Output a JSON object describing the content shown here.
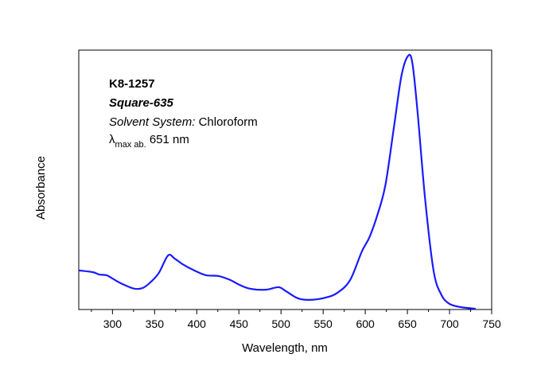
{
  "chart_data": {
    "type": "line",
    "title": "",
    "xlabel": "Wavelength, nm",
    "ylabel": "Absorbance",
    "xlim": [
      260,
      750
    ],
    "ylim": [
      0,
      1.022
    ],
    "xticks": [
      300,
      350,
      400,
      450,
      500,
      550,
      600,
      650,
      700,
      750
    ],
    "xtick_labels": [
      "300",
      "350",
      "400",
      "450",
      "500",
      "550",
      "600",
      "650",
      "700",
      "750"
    ],
    "yticks_shown": false,
    "grid": false,
    "line_color": "#1a1aff",
    "annotations": {
      "compound_id": "K8-1257",
      "dye_name": "Square-635",
      "solvent_label": "Solvent System:",
      "solvent_value": "Chloroform",
      "lambda_symbol": "λ",
      "lambda_subscript": "max ab.",
      "lambda_value": "651 nm"
    },
    "series": [
      {
        "x": [
          260,
          277,
          284,
          293,
          300,
          312,
          326,
          336,
          345,
          355,
          366,
          374,
          383,
          397,
          411,
          426,
          440,
          449,
          463,
          482,
          497,
          506,
          520,
          534,
          553,
          567,
          582,
          596,
          605,
          615,
          624,
          634,
          643,
          651,
          656,
          662,
          671,
          681,
          690,
          700,
          714,
          731
        ],
        "y": [
          0.154,
          0.147,
          0.138,
          0.135,
          0.122,
          0.1,
          0.082,
          0.085,
          0.107,
          0.144,
          0.213,
          0.2,
          0.179,
          0.154,
          0.135,
          0.132,
          0.116,
          0.1,
          0.082,
          0.078,
          0.088,
          0.072,
          0.044,
          0.038,
          0.047,
          0.066,
          0.116,
          0.229,
          0.285,
          0.379,
          0.492,
          0.718,
          0.922,
          1.0,
          0.969,
          0.78,
          0.436,
          0.154,
          0.06,
          0.022,
          0.009,
          0.003
        ]
      }
    ]
  }
}
